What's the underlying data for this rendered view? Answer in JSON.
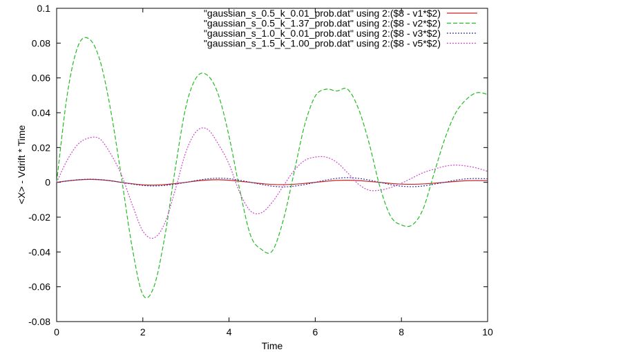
{
  "chart_data": {
    "type": "line",
    "xlabel": "Time",
    "ylabel": "<X> - Vdrift * Time",
    "xlim": [
      0,
      10
    ],
    "ylim": [
      -0.08,
      0.1
    ],
    "x_ticks": [
      "0",
      "2",
      "4",
      "6",
      "8",
      "10"
    ],
    "y_ticks": [
      "-0.08",
      "-0.06",
      "-0.04",
      "-0.02",
      "0",
      "0.02",
      "0.04",
      "0.06",
      "0.08",
      "0.1"
    ],
    "grid": false,
    "legend_position": "top-right",
    "x": [
      0,
      0.25,
      0.5,
      0.75,
      1.0,
      1.25,
      1.5,
      1.75,
      2.0,
      2.25,
      2.5,
      2.75,
      3.0,
      3.25,
      3.5,
      3.75,
      4.0,
      4.25,
      4.5,
      4.75,
      5.0,
      5.25,
      5.5,
      5.75,
      6.0,
      6.25,
      6.5,
      6.75,
      7.0,
      7.25,
      7.5,
      7.75,
      8.0,
      8.25,
      8.5,
      8.75,
      9.0,
      9.25,
      9.5,
      9.75,
      10.0
    ],
    "series": [
      {
        "name": "\"gaussian_s_0.5_k_0.01_prob.dat\" using 2:($8 - v1*$2)",
        "color": "#cc2222",
        "dash": "solid",
        "values": [
          0,
          0.0008,
          0.0014,
          0.0017,
          0.0015,
          0.0009,
          0,
          -0.0008,
          -0.0014,
          -0.0016,
          -0.0013,
          -0.0007,
          0,
          0.0008,
          0.0013,
          0.0015,
          0.0012,
          0.0006,
          0,
          -0.0007,
          -0.0012,
          -0.0013,
          -0.0011,
          -0.0006,
          0,
          0.0006,
          0.0011,
          0.0012,
          0.001,
          0.0005,
          0,
          -0.0006,
          -0.001,
          -0.0011,
          -0.0009,
          -0.0005,
          0,
          0.0005,
          0.0009,
          0.001,
          0.0009
        ]
      },
      {
        "name": "\"gaussian_s_0.5_k_1.37_prob.dat\" using 2:($8 - v2*$2)",
        "color": "#22bb22",
        "dash": "dashed",
        "values": [
          0,
          0.051,
          0.0785,
          0.0825,
          0.0705,
          0.042,
          0.0035,
          -0.037,
          -0.0645,
          -0.0605,
          -0.0325,
          0.0075,
          0.0435,
          0.0605,
          0.0615,
          0.0505,
          0.0265,
          -0.0045,
          -0.0305,
          -0.0385,
          -0.0395,
          -0.0225,
          0.0045,
          0.0325,
          0.0495,
          0.0535,
          0.0525,
          0.0535,
          0.0425,
          0.0225,
          -0.0025,
          -0.0195,
          -0.0245,
          -0.0245,
          -0.0155,
          0.0045,
          0.0245,
          0.0395,
          0.0475,
          0.0515,
          0.0505
        ]
      },
      {
        "name": "\"gaussian_s_1.0_k_0.01_prob.dat\" using 2:($8 - v3*$2)",
        "color": "#333399",
        "dash": "dotted",
        "values": [
          0,
          0.0008,
          0.0015,
          0.0018,
          0.0016,
          0.0009,
          0,
          -0.001,
          -0.0018,
          -0.0021,
          -0.0018,
          -0.001,
          0,
          0.0011,
          0.002,
          0.0024,
          0.0021,
          0.0012,
          0,
          -0.0012,
          -0.0022,
          -0.0026,
          -0.0022,
          -0.0013,
          0,
          0.0013,
          0.0023,
          0.0027,
          0.0023,
          0.0013,
          0,
          -0.0013,
          -0.0022,
          -0.0025,
          -0.0021,
          -0.0011,
          0,
          0.0012,
          0.002,
          0.0022,
          0.002
        ]
      },
      {
        "name": "\"gaussian_s_1.5_k_1.00_prob.dat\" using 2:($8 - v5*$2)",
        "color": "#cc44cc",
        "dash": "dotted",
        "values": [
          0,
          0.013,
          0.022,
          0.0255,
          0.025,
          0.0165,
          0.0045,
          -0.0125,
          -0.028,
          -0.032,
          -0.024,
          -0.0045,
          0.0175,
          0.0295,
          0.0305,
          0.022,
          0.0105,
          -0.006,
          -0.0165,
          -0.0175,
          -0.0115,
          -0.0025,
          0.0065,
          0.0125,
          0.0145,
          0.0145,
          0.0115,
          0.0055,
          -0.001,
          -0.0045,
          -0.0045,
          -0.003,
          -0.0005,
          0.0025,
          0.0055,
          0.0075,
          0.0092,
          0.0099,
          0.0094,
          0.0082,
          0.0063
        ]
      }
    ]
  }
}
